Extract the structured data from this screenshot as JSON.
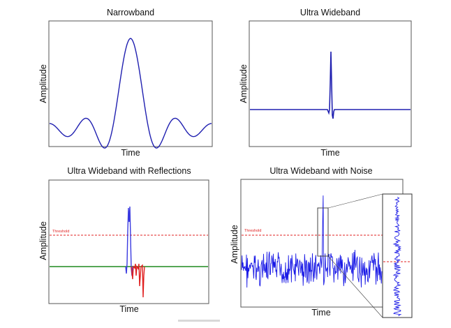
{
  "chart_data": [
    {
      "type": "line",
      "title": "Narrowband",
      "xlabel": "Time",
      "ylabel": "Amplitude",
      "grid": false,
      "ticks": false,
      "series": [
        {
          "shape": "sinc",
          "color": "#2020b0"
        }
      ]
    },
    {
      "type": "line",
      "title": "Ultra Wideband",
      "xlabel": "Time",
      "ylabel": "Amplitude",
      "grid": false,
      "ticks": false,
      "series": [
        {
          "shape": "narrow pulse",
          "color": "#2020b0"
        }
      ]
    },
    {
      "type": "line",
      "title": "Ultra Wideband with Reflections",
      "xlabel": "Time",
      "ylabel": "Amplitude",
      "grid": false,
      "ticks": false,
      "threshold_label": "Threshold",
      "series": [
        {
          "shape": "direct pulse",
          "color": "#3a3ae0"
        },
        {
          "shape": "reflections",
          "color": "#e02020"
        },
        {
          "shape": "baseline",
          "color": "#1f8a1f"
        },
        {
          "shape": "threshold",
          "color": "#e02020"
        }
      ]
    },
    {
      "type": "line",
      "title": "Ultra Wideband with Noise",
      "xlabel": "Time",
      "ylabel": "Amplitude",
      "grid": false,
      "ticks": false,
      "threshold_label": "Threshold",
      "inset": "zoom of pulse region",
      "series": [
        {
          "shape": "pulse in noise",
          "color": "#1a1ae6"
        },
        {
          "shape": "threshold",
          "color": "#e02020"
        }
      ]
    }
  ],
  "colors": {
    "signal": "#2020b0",
    "signal_bright": "#1a1ae6",
    "reflection": "#e02020",
    "baseline": "#1f8a1f",
    "threshold": "#e02020"
  }
}
